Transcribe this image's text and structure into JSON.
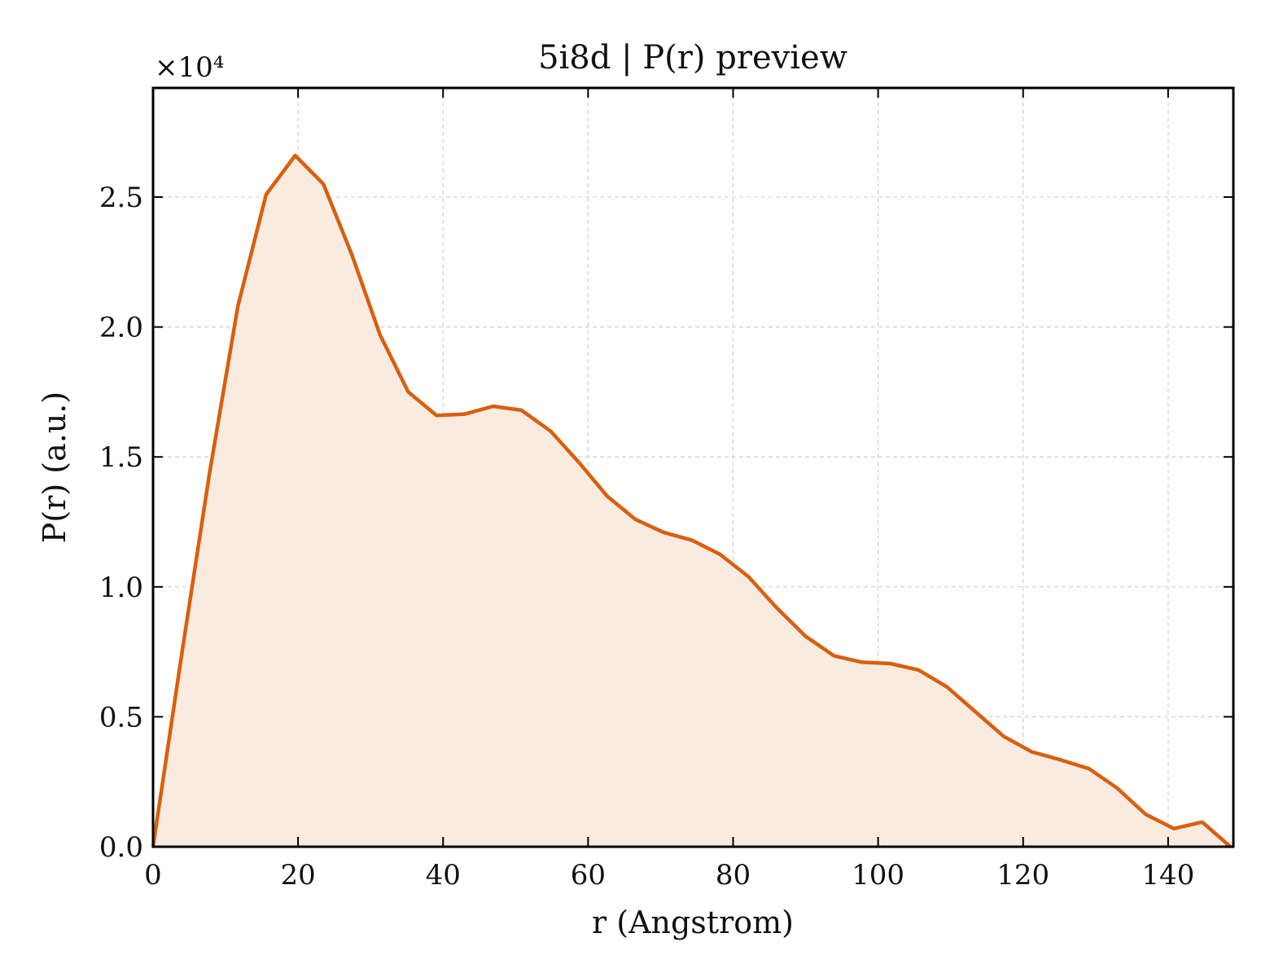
{
  "chart_data": {
    "type": "area",
    "title": "5i8d | P(r) preview",
    "xlabel": "r (Angstrom)",
    "ylabel": "P(r) (a.u.)",
    "y_multiplier": "×10⁴",
    "xlim": [
      0,
      149
    ],
    "ylim": [
      0,
      29200
    ],
    "x_ticks": [
      0,
      20,
      40,
      60,
      80,
      100,
      120,
      140
    ],
    "y_ticks": [
      0,
      5000,
      10000,
      15000,
      20000,
      25000
    ],
    "y_tick_labels": [
      "0.0",
      "0.5",
      "1.0",
      "1.5",
      "2.0",
      "2.5"
    ],
    "grid": true,
    "line_color": "#d95f0e",
    "fill_color": "#f9ebe0",
    "series": [
      {
        "x": [
          0,
          3.9,
          7.8,
          11.7,
          15.6,
          19.6,
          23.5,
          27.4,
          31.3,
          35.2,
          39.1,
          43.0,
          46.9,
          50.8,
          54.8,
          58.7,
          62.6,
          66.5,
          70.4,
          74.3,
          78.2,
          82.1,
          86.0,
          90.0,
          93.9,
          97.8,
          101.7,
          105.6,
          109.5,
          113.4,
          117.3,
          121.2,
          125.1,
          129.1,
          133.0,
          136.9,
          140.8,
          144.7,
          148.6
        ],
        "values": [
          0,
          7300,
          14400,
          20800,
          25100,
          26600,
          25500,
          22800,
          19700,
          17500,
          16600,
          16650,
          16950,
          16800,
          16000,
          14800,
          13500,
          12600,
          12100,
          11800,
          11250,
          10400,
          9200,
          8100,
          7350,
          7100,
          7050,
          6800,
          6150,
          5200,
          4250,
          3650,
          3350,
          3000,
          2250,
          1250,
          700,
          950,
          0
        ]
      }
    ]
  }
}
